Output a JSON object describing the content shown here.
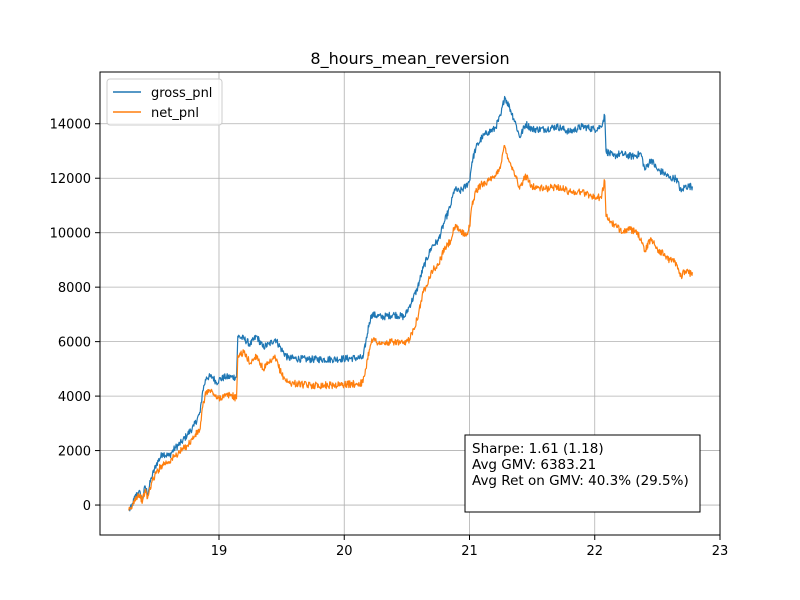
{
  "chart_data": {
    "type": "line",
    "title": "8_hours_mean_reversion",
    "xlabel": "",
    "ylabel": "",
    "xlim": [
      18.05,
      23.0
    ],
    "ylim": [
      -1100,
      15900
    ],
    "x_ticks": [
      19,
      20,
      21,
      22,
      23
    ],
    "x_tick_labels": [
      "19",
      "20",
      "21",
      "22",
      "23"
    ],
    "y_ticks": [
      0,
      2000,
      4000,
      6000,
      8000,
      10000,
      12000,
      14000
    ],
    "y_tick_labels": [
      "0",
      "2000",
      "4000",
      "6000",
      "8000",
      "10000",
      "12000",
      "14000"
    ],
    "grid": true,
    "legend_position": "top-left",
    "series": [
      {
        "name": "gross_pnl",
        "color": "#1f77b4",
        "points": [
          [
            18.28,
            -200
          ],
          [
            18.3,
            -100
          ],
          [
            18.33,
            300
          ],
          [
            18.36,
            500
          ],
          [
            18.39,
            200
          ],
          [
            18.41,
            700
          ],
          [
            18.43,
            400
          ],
          [
            18.46,
            1000
          ],
          [
            18.5,
            1500
          ],
          [
            18.55,
            1900
          ],
          [
            18.6,
            1800
          ],
          [
            18.65,
            2100
          ],
          [
            18.7,
            2300
          ],
          [
            18.75,
            2600
          ],
          [
            18.8,
            2900
          ],
          [
            18.85,
            3400
          ],
          [
            18.87,
            4200
          ],
          [
            18.9,
            4700
          ],
          [
            18.95,
            4700
          ],
          [
            18.98,
            4500
          ],
          [
            19.0,
            4600
          ],
          [
            19.05,
            4700
          ],
          [
            19.1,
            4700
          ],
          [
            19.14,
            4700
          ],
          [
            19.15,
            6200
          ],
          [
            19.2,
            6100
          ],
          [
            19.25,
            5900
          ],
          [
            19.3,
            6200
          ],
          [
            19.35,
            5800
          ],
          [
            19.4,
            5900
          ],
          [
            19.45,
            6100
          ],
          [
            19.5,
            5700
          ],
          [
            19.55,
            5400
          ],
          [
            19.7,
            5350
          ],
          [
            19.9,
            5350
          ],
          [
            20.1,
            5400
          ],
          [
            20.15,
            5400
          ],
          [
            20.2,
            6700
          ],
          [
            20.22,
            7000
          ],
          [
            20.3,
            6900
          ],
          [
            20.4,
            7000
          ],
          [
            20.48,
            6900
          ],
          [
            20.52,
            7300
          ],
          [
            20.58,
            7900
          ],
          [
            20.63,
            8700
          ],
          [
            20.7,
            9500
          ],
          [
            20.75,
            9700
          ],
          [
            20.8,
            10400
          ],
          [
            20.85,
            11000
          ],
          [
            20.88,
            11600
          ],
          [
            20.92,
            11500
          ],
          [
            20.97,
            11700
          ],
          [
            21.0,
            11900
          ],
          [
            21.02,
            12600
          ],
          [
            21.05,
            13100
          ],
          [
            21.1,
            13500
          ],
          [
            21.15,
            13700
          ],
          [
            21.2,
            13800
          ],
          [
            21.25,
            14300
          ],
          [
            21.28,
            15000
          ],
          [
            21.32,
            14600
          ],
          [
            21.37,
            14000
          ],
          [
            21.4,
            13500
          ],
          [
            21.45,
            14000
          ],
          [
            21.5,
            13800
          ],
          [
            21.6,
            13800
          ],
          [
            21.7,
            13900
          ],
          [
            21.8,
            13700
          ],
          [
            21.9,
            13900
          ],
          [
            22.0,
            13800
          ],
          [
            22.05,
            13900
          ],
          [
            22.08,
            14300
          ],
          [
            22.09,
            13000
          ],
          [
            22.15,
            12800
          ],
          [
            22.2,
            12900
          ],
          [
            22.3,
            12800
          ],
          [
            22.37,
            12900
          ],
          [
            22.4,
            12300
          ],
          [
            22.45,
            12700
          ],
          [
            22.5,
            12300
          ],
          [
            22.55,
            12200
          ],
          [
            22.6,
            12000
          ],
          [
            22.65,
            12000
          ],
          [
            22.69,
            11500
          ],
          [
            22.72,
            11700
          ],
          [
            22.75,
            11700
          ],
          [
            22.78,
            11700
          ]
        ]
      },
      {
        "name": "net_pnl",
        "color": "#ff7f0e",
        "points": [
          [
            18.28,
            -200
          ],
          [
            18.3,
            -150
          ],
          [
            18.33,
            250
          ],
          [
            18.36,
            400
          ],
          [
            18.39,
            150
          ],
          [
            18.41,
            550
          ],
          [
            18.43,
            250
          ],
          [
            18.46,
            800
          ],
          [
            18.5,
            1200
          ],
          [
            18.55,
            1500
          ],
          [
            18.6,
            1600
          ],
          [
            18.65,
            1800
          ],
          [
            18.7,
            2000
          ],
          [
            18.75,
            2200
          ],
          [
            18.8,
            2500
          ],
          [
            18.85,
            2800
          ],
          [
            18.87,
            3600
          ],
          [
            18.9,
            4200
          ],
          [
            18.95,
            4150
          ],
          [
            18.98,
            3900
          ],
          [
            19.0,
            3950
          ],
          [
            19.05,
            4000
          ],
          [
            19.1,
            4050
          ],
          [
            19.14,
            3900
          ],
          [
            19.15,
            5500
          ],
          [
            19.2,
            5600
          ],
          [
            19.25,
            5200
          ],
          [
            19.3,
            5500
          ],
          [
            19.35,
            5000
          ],
          [
            19.4,
            5200
          ],
          [
            19.45,
            5400
          ],
          [
            19.5,
            4800
          ],
          [
            19.55,
            4500
          ],
          [
            19.7,
            4400
          ],
          [
            19.9,
            4400
          ],
          [
            20.1,
            4450
          ],
          [
            20.15,
            4500
          ],
          [
            20.2,
            5700
          ],
          [
            20.22,
            6100
          ],
          [
            20.3,
            5900
          ],
          [
            20.4,
            6000
          ],
          [
            20.48,
            5900
          ],
          [
            20.52,
            6100
          ],
          [
            20.58,
            6800
          ],
          [
            20.63,
            7800
          ],
          [
            20.7,
            8600
          ],
          [
            20.75,
            8800
          ],
          [
            20.8,
            9400
          ],
          [
            20.85,
            9700
          ],
          [
            20.88,
            10200
          ],
          [
            20.92,
            10100
          ],
          [
            20.97,
            9900
          ],
          [
            21.0,
            10200
          ],
          [
            21.02,
            11000
          ],
          [
            21.05,
            11500
          ],
          [
            21.1,
            11800
          ],
          [
            21.15,
            11900
          ],
          [
            21.2,
            12000
          ],
          [
            21.25,
            12500
          ],
          [
            21.28,
            13200
          ],
          [
            21.32,
            12600
          ],
          [
            21.37,
            12100
          ],
          [
            21.4,
            11600
          ],
          [
            21.45,
            12100
          ],
          [
            21.5,
            11700
          ],
          [
            21.6,
            11600
          ],
          [
            21.7,
            11700
          ],
          [
            21.8,
            11500
          ],
          [
            21.9,
            11500
          ],
          [
            22.0,
            11300
          ],
          [
            22.05,
            11300
          ],
          [
            22.08,
            11900
          ],
          [
            22.09,
            10600
          ],
          [
            22.15,
            10300
          ],
          [
            22.2,
            10100
          ],
          [
            22.3,
            10100
          ],
          [
            22.37,
            9800
          ],
          [
            22.4,
            9300
          ],
          [
            22.45,
            9800
          ],
          [
            22.5,
            9400
          ],
          [
            22.55,
            9200
          ],
          [
            22.6,
            9000
          ],
          [
            22.65,
            8900
          ],
          [
            22.69,
            8400
          ],
          [
            22.72,
            8600
          ],
          [
            22.75,
            8500
          ],
          [
            22.78,
            8550
          ]
        ]
      }
    ],
    "annotation": {
      "lines": [
        "Sharpe: 1.61 (1.18)",
        "Avg GMV: 6383.21",
        "Avg Ret on GMV: 40.3% (29.5%)"
      ],
      "position": "bottom-right"
    }
  }
}
